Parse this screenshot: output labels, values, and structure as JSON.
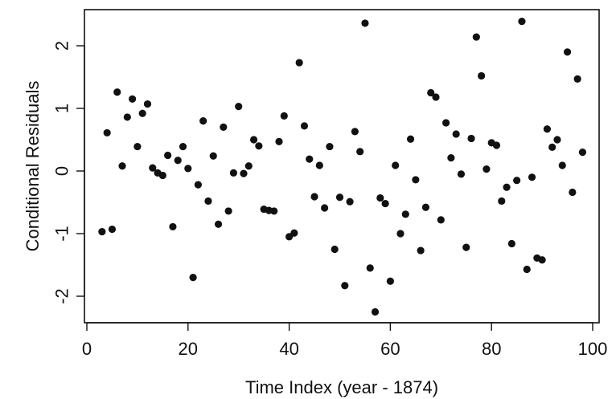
{
  "chart_data": {
    "type": "scatter",
    "xlabel": "Time Index (year - 1874)",
    "ylabel": "Conditional Residuals",
    "xlim": [
      0,
      100
    ],
    "ylim": [
      -2.5,
      2.5
    ],
    "xticks": [
      0,
      20,
      40,
      60,
      80,
      100
    ],
    "yticks": [
      -2,
      -1,
      0,
      1,
      2
    ],
    "grid": false,
    "legend": "none",
    "marker_color": "#111111",
    "points": [
      [
        3,
        -0.97
      ],
      [
        4,
        0.61
      ],
      [
        5,
        -0.93
      ],
      [
        6,
        1.26
      ],
      [
        7,
        0.08
      ],
      [
        8,
        0.86
      ],
      [
        9,
        1.15
      ],
      [
        10,
        0.39
      ],
      [
        11,
        0.92
      ],
      [
        12,
        1.07
      ],
      [
        13,
        0.05
      ],
      [
        14,
        -0.03
      ],
      [
        15,
        -0.07
      ],
      [
        16,
        0.25
      ],
      [
        17,
        -0.89
      ],
      [
        18,
        0.17
      ],
      [
        19,
        0.39
      ],
      [
        20,
        0.04
      ],
      [
        21,
        -1.7
      ],
      [
        22,
        -0.22
      ],
      [
        23,
        0.8
      ],
      [
        24,
        -0.48
      ],
      [
        25,
        0.24
      ],
      [
        26,
        -0.85
      ],
      [
        27,
        0.7
      ],
      [
        28,
        -0.64
      ],
      [
        29,
        -0.03
      ],
      [
        30,
        1.03
      ],
      [
        31,
        -0.04
      ],
      [
        32,
        0.08
      ],
      [
        33,
        0.5
      ],
      [
        34,
        0.4
      ],
      [
        35,
        -0.61
      ],
      [
        36,
        -0.63
      ],
      [
        37,
        -0.64
      ],
      [
        38,
        0.47
      ],
      [
        39,
        0.88
      ],
      [
        40,
        -1.05
      ],
      [
        41,
        -0.99
      ],
      [
        42,
        1.73
      ],
      [
        43,
        0.72
      ],
      [
        44,
        0.19
      ],
      [
        45,
        -0.41
      ],
      [
        46,
        0.09
      ],
      [
        47,
        -0.59
      ],
      [
        48,
        0.39
      ],
      [
        49,
        -1.25
      ],
      [
        50,
        -0.42
      ],
      [
        51,
        -1.83
      ],
      [
        52,
        -0.49
      ],
      [
        53,
        0.63
      ],
      [
        54,
        0.31
      ],
      [
        55,
        2.36
      ],
      [
        56,
        -1.55
      ],
      [
        57,
        -2.25
      ],
      [
        58,
        -0.43
      ],
      [
        59,
        -0.52
      ],
      [
        60,
        -1.76
      ],
      [
        61,
        0.09
      ],
      [
        62,
        -1.0
      ],
      [
        63,
        -0.69
      ],
      [
        64,
        0.51
      ],
      [
        65,
        -0.14
      ],
      [
        66,
        -1.27
      ],
      [
        67,
        -0.58
      ],
      [
        68,
        1.25
      ],
      [
        69,
        1.18
      ],
      [
        70,
        -0.78
      ],
      [
        71,
        0.77
      ],
      [
        72,
        0.21
      ],
      [
        73,
        0.59
      ],
      [
        74,
        -0.05
      ],
      [
        75,
        -1.22
      ],
      [
        76,
        0.52
      ],
      [
        77,
        2.14
      ],
      [
        78,
        1.52
      ],
      [
        79,
        0.03
      ],
      [
        80,
        0.45
      ],
      [
        81,
        0.41
      ],
      [
        82,
        -0.48
      ],
      [
        83,
        -0.26
      ],
      [
        84,
        -1.16
      ],
      [
        85,
        -0.15
      ],
      [
        86,
        2.39
      ],
      [
        87,
        -1.57
      ],
      [
        88,
        -0.1
      ],
      [
        89,
        -1.39
      ],
      [
        90,
        -1.42
      ],
      [
        91,
        0.67
      ],
      [
        92,
        0.38
      ],
      [
        93,
        0.5
      ],
      [
        94,
        0.09
      ],
      [
        95,
        1.9
      ],
      [
        96,
        -0.34
      ],
      [
        97,
        1.47
      ],
      [
        98,
        0.3
      ]
    ]
  }
}
